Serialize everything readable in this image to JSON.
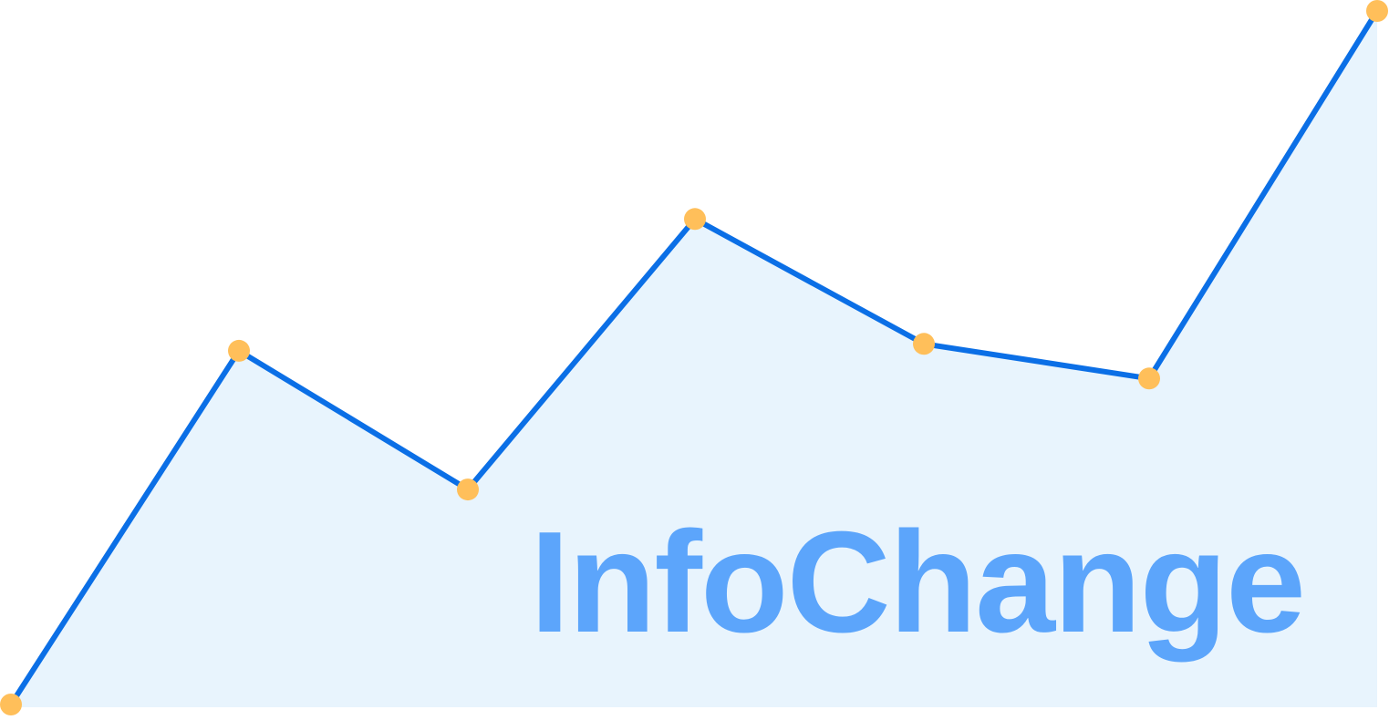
{
  "brand": {
    "name": "InfoChange",
    "text_color": "#5ca5fb"
  },
  "graphic": {
    "line_color": "#0b6fe6",
    "fill_color": "#e8f4fd",
    "point_color": "#ffbf5a",
    "levels": [
      0,
      0.51,
      0.31,
      0.7,
      0.52,
      0.47,
      1
    ]
  }
}
